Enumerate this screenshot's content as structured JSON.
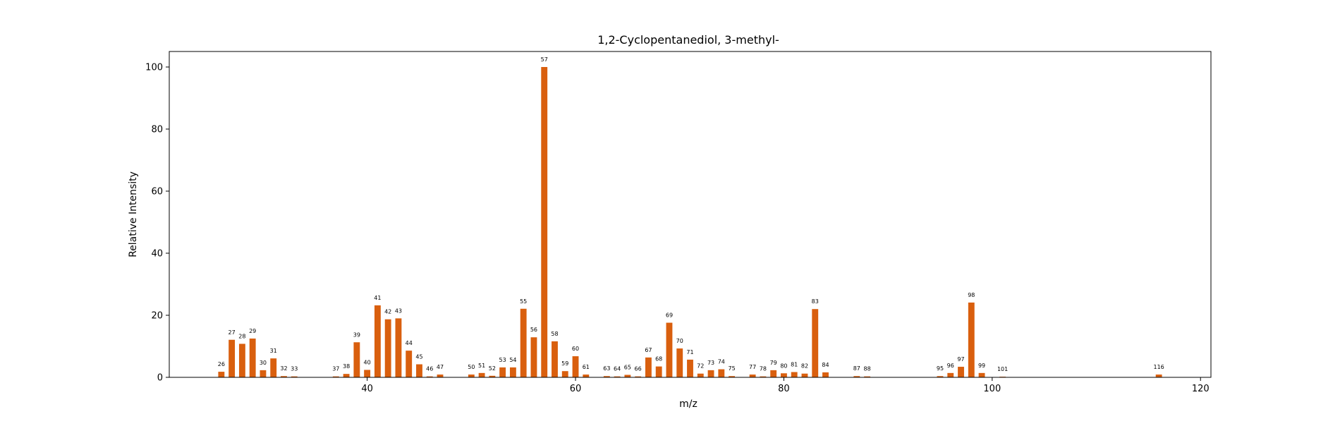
{
  "chart_data": {
    "type": "bar",
    "title": "1,2-Cyclopentanediol, 3-methyl-",
    "xlabel": "m/z",
    "ylabel": "Relative Intensity",
    "xlim": [
      21,
      121
    ],
    "ylim": [
      0,
      105
    ],
    "xticks": [
      40,
      60,
      80,
      100,
      120
    ],
    "yticks": [
      0,
      20,
      40,
      60,
      80,
      100
    ],
    "grid": false,
    "bar_color": "#d95f0e",
    "x": [
      26,
      27,
      28,
      29,
      30,
      31,
      32,
      33,
      37,
      38,
      39,
      40,
      41,
      42,
      43,
      44,
      45,
      46,
      47,
      50,
      51,
      52,
      53,
      54,
      55,
      56,
      57,
      58,
      59,
      60,
      61,
      63,
      64,
      65,
      66,
      67,
      68,
      69,
      70,
      71,
      72,
      73,
      74,
      75,
      77,
      78,
      79,
      80,
      81,
      82,
      83,
      84,
      87,
      88,
      95,
      96,
      97,
      98,
      99,
      101,
      116
    ],
    "values": [
      1.8,
      12.1,
      10.8,
      12.5,
      2.3,
      6.1,
      0.4,
      0.3,
      0.3,
      1.1,
      11.3,
      2.4,
      23.2,
      18.7,
      19.0,
      8.6,
      4.2,
      0.3,
      0.9,
      0.9,
      1.4,
      0.5,
      3.2,
      3.2,
      22.1,
      12.9,
      100.0,
      11.6,
      2.0,
      6.8,
      0.9,
      0.4,
      0.3,
      0.8,
      0.3,
      6.4,
      3.5,
      17.6,
      9.3,
      5.7,
      1.2,
      2.3,
      2.6,
      0.4,
      0.9,
      0.3,
      2.3,
      1.3,
      1.7,
      1.2,
      22.0,
      1.6,
      0.4,
      0.3,
      0.4,
      1.4,
      3.4,
      24.1,
      1.4,
      0.2,
      0.9
    ],
    "labels": [
      "26",
      "27",
      "28",
      "29",
      "30",
      "31",
      "32",
      "33",
      "37",
      "38",
      "39",
      "40",
      "41",
      "42",
      "43",
      "44",
      "45",
      "46",
      "47",
      "50",
      "51",
      "52",
      "53",
      "54",
      "55",
      "56",
      "57",
      "58",
      "59",
      "60",
      "61",
      "63",
      "64",
      "65",
      "66",
      "67",
      "68",
      "69",
      "70",
      "71",
      "72",
      "73",
      "74",
      "75",
      "77",
      "78",
      "79",
      "80",
      "81",
      "82",
      "83",
      "84",
      "87",
      "88",
      "95",
      "96",
      "97",
      "98",
      "99",
      "101",
      "116"
    ]
  }
}
